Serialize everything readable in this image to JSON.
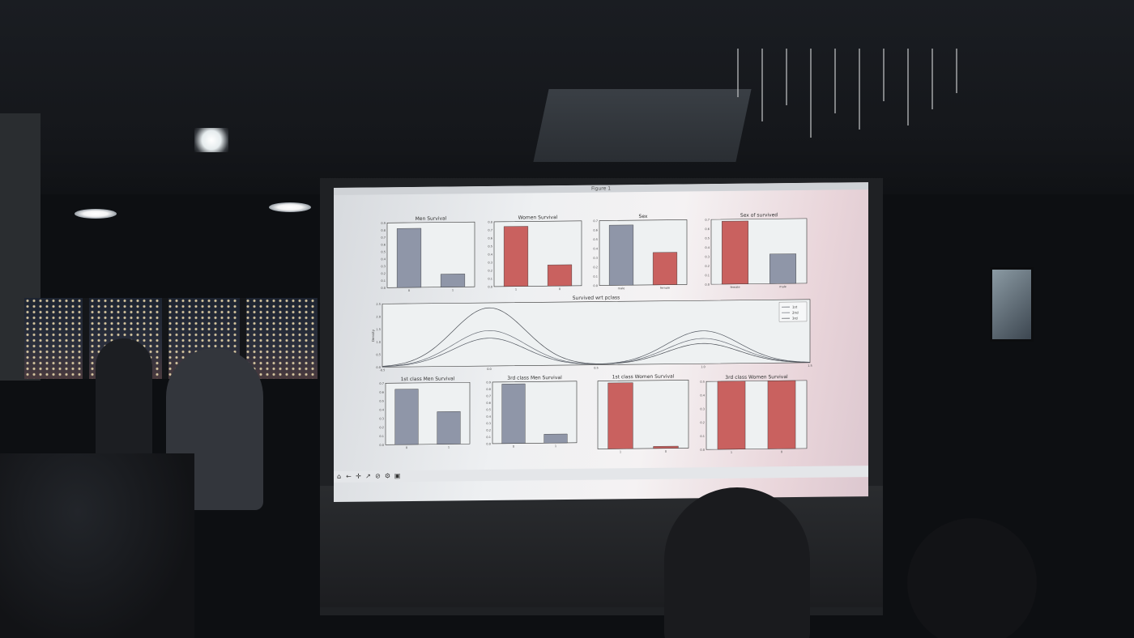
{
  "window": {
    "title": "Figure 1"
  },
  "charts": [
    {
      "id": "men-survival",
      "title": "Men Survival",
      "type": "bar",
      "categories": [
        "0",
        "1"
      ],
      "values": [
        0.82,
        0.18
      ],
      "ylim": [
        0,
        0.9
      ],
      "yticks": [
        "0.0",
        "0.1",
        "0.2",
        "0.3",
        "0.4",
        "0.5",
        "0.6",
        "0.7",
        "0.8",
        "0.9"
      ],
      "color": "#8f96a8"
    },
    {
      "id": "women-survival",
      "title": "Women Survival",
      "type": "bar",
      "categories": [
        "1",
        "0"
      ],
      "values": [
        0.74,
        0.26
      ],
      "ylim": [
        0,
        0.8
      ],
      "yticks": [
        "0.0",
        "0.1",
        "0.2",
        "0.3",
        "0.4",
        "0.5",
        "0.6",
        "0.7",
        "0.8"
      ],
      "color": "#c9615f"
    },
    {
      "id": "sex",
      "title": "Sex",
      "type": "bar",
      "categories": [
        "male",
        "female"
      ],
      "values": [
        0.65,
        0.35
      ],
      "ylim": [
        0,
        0.7
      ],
      "yticks": [
        "0.0",
        "0.1",
        "0.2",
        "0.3",
        "0.4",
        "0.5",
        "0.6",
        "0.7"
      ],
      "colors": [
        "#8f96a8",
        "#c9615f"
      ]
    },
    {
      "id": "sex-of-survived",
      "title": "Sex of survived",
      "type": "bar",
      "categories": [
        "female",
        "male"
      ],
      "values": [
        0.68,
        0.32
      ],
      "ylim": [
        0,
        0.7
      ],
      "yticks": [
        "0.0",
        "0.1",
        "0.2",
        "0.3",
        "0.4",
        "0.5",
        "0.6",
        "0.7"
      ],
      "colors": [
        "#c9615f",
        "#8f96a8"
      ]
    },
    {
      "id": "1st-class-men-survival",
      "title": "1st class Men Survival",
      "type": "bar",
      "categories": [
        "0",
        "1"
      ],
      "values": [
        0.63,
        0.37
      ],
      "ylim": [
        0,
        0.7
      ],
      "yticks": [
        "0.0",
        "0.1",
        "0.2",
        "0.3",
        "0.4",
        "0.5",
        "0.6",
        "0.7"
      ],
      "color": "#8f96a8"
    },
    {
      "id": "3rd-class-men-survival",
      "title": "3rd class Men Survival",
      "type": "bar",
      "categories": [
        "0",
        "1"
      ],
      "values": [
        0.87,
        0.13
      ],
      "ylim": [
        0,
        0.9
      ],
      "yticks": [
        "0.0",
        "0.1",
        "0.2",
        "0.3",
        "0.4",
        "0.5",
        "0.6",
        "0.7",
        "0.8",
        "0.9"
      ],
      "color": "#8f96a8"
    },
    {
      "id": "1st-class-women-survival",
      "title": "1st class Women Survival",
      "type": "bar",
      "categories": [
        "1",
        "0"
      ],
      "values": [
        0.97,
        0.03
      ],
      "ylim": [
        0,
        1.0
      ],
      "yticks": [],
      "color": "#c9615f"
    },
    {
      "id": "3rd-class-women-survival",
      "title": "3rd class Women Survival",
      "type": "bar",
      "categories": [
        "1",
        "0"
      ],
      "values": [
        0.5,
        0.5
      ],
      "ylim": [
        0,
        0.5
      ],
      "yticks": [
        "0.0",
        "0.1",
        "0.2",
        "0.3",
        "0.4",
        "0.5"
      ],
      "color": "#c9615f"
    }
  ],
  "kde": {
    "title": "Survived wrt pclass",
    "ylabel": "Density",
    "xlim": [
      -0.5,
      1.5
    ],
    "ylim": [
      0,
      2.5
    ],
    "xticks": [
      "-0.5",
      "0.0",
      "0.5",
      "1.0",
      "1.5"
    ],
    "yticks": [
      "0.0",
      "0.5",
      "1.0",
      "1.5",
      "2.0",
      "2.5"
    ],
    "series": [
      {
        "name": "1st",
        "color": "#555a63",
        "peaks": [
          [
            0.0,
            1.1
          ],
          [
            1.0,
            1.3
          ]
        ]
      },
      {
        "name": "2nd",
        "color": "#6a6f78",
        "peaks": [
          [
            0.0,
            1.4
          ],
          [
            1.0,
            1.0
          ]
        ]
      },
      {
        "name": "3rd",
        "color": "#4a4e55",
        "peaks": [
          [
            0.0,
            2.3
          ],
          [
            1.0,
            0.8
          ]
        ]
      }
    ]
  },
  "toolbar": {
    "icons": [
      "home-icon",
      "back-icon",
      "forward-icon",
      "pan-icon",
      "zoom-icon",
      "configure-icon",
      "save-icon"
    ]
  }
}
